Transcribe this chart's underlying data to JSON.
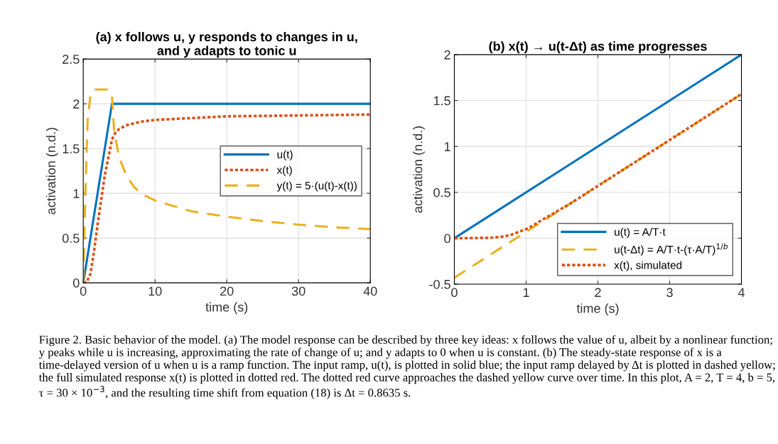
{
  "chart_data": [
    {
      "type": "line",
      "title": "(a) x follows u, y responds to changes in u,\nand y adapts to tonic u",
      "xlabel": "time (s)",
      "ylabel": "activation (n.d.)",
      "xlim": [
        0,
        40
      ],
      "ylim": [
        0,
        2.5
      ],
      "xticks": [
        0,
        10,
        20,
        30,
        40
      ],
      "yticks": [
        0,
        0.5,
        1,
        1.5,
        2,
        2.5
      ],
      "grid": true,
      "legend": "right",
      "series": [
        {
          "name": "u(t)",
          "color": "#0072bd",
          "line_style": "solid",
          "x": [
            0,
            4,
            40
          ],
          "values": [
            0,
            2,
            2
          ]
        },
        {
          "name": "x(t)",
          "color": "#d95319",
          "line_style": "dotted",
          "x": [
            0,
            0.5,
            1,
            1.5,
            2,
            3,
            4,
            4.5,
            5,
            6,
            8,
            10,
            15,
            20,
            30,
            40
          ],
          "values": [
            0,
            0.01,
            0.1,
            0.35,
            0.65,
            1.2,
            1.6,
            1.68,
            1.72,
            1.76,
            1.8,
            1.82,
            1.84,
            1.86,
            1.87,
            1.88
          ]
        },
        {
          "name": "y(t) = 5·(u(t)-x(t))",
          "color": "#edb120",
          "line_style": "dashed",
          "x": [
            0,
            0.3,
            0.6,
            1,
            1.5,
            3.5,
            4,
            4.3,
            5,
            6,
            7,
            8,
            10,
            15,
            20,
            25,
            30,
            35,
            40
          ],
          "values": [
            0,
            1.0,
            1.8,
            2.1,
            2.16,
            2.16,
            2.1,
            1.7,
            1.4,
            1.2,
            1.08,
            1.0,
            0.92,
            0.8,
            0.74,
            0.69,
            0.65,
            0.62,
            0.6
          ]
        }
      ],
      "annotations": [
        "Figure 2. Basic behavior of the model. (a) The model response can be described by three key ideas: x follows the value of u, albeit by a nonlinear function; y peaks while u is increasing, approximating the rate of change of u; and y adapts to 0 when u is constant. (b) The steady-state response of x is a time-delayed version of u when u is a ramp function. The input ramp, u(t), is plotted in solid blue; the input ramp delayed by Δt is plotted in dashed yellow; the full simulated response x(t) is plotted in dotted red. The dotted red curve approaches the dashed yellow curve over time. In this plot, A = 2, T = 4, b = 5, τ = 30 × 10$^{−3}$, and the resulting time shift from equation (18) is Δt = 0.8635 s."
      ]
    },
    {
      "type": "line",
      "title": "(b) x(t) → u(t-Δt) as time progresses",
      "xlabel": "time (s)",
      "ylabel": "activation (n.d.)",
      "xlim": [
        0,
        4
      ],
      "ylim": [
        -0.5,
        2
      ],
      "xticks": [
        0,
        1,
        2,
        3,
        4
      ],
      "yticks": [
        -0.5,
        0,
        0.5,
        1,
        1.5,
        2
      ],
      "grid": true,
      "legend": "lower right",
      "series": [
        {
          "name": "u(t) = A/T·t",
          "color": "#0072bd",
          "line_style": "solid",
          "x": [
            0,
            4
          ],
          "values": [
            0,
            2
          ]
        },
        {
          "name": "u(t-Δt) = A/T·t-(τ·A/T)$^{1/b}$",
          "color": "#edb120",
          "line_style": "dashed",
          "x": [
            0,
            4
          ],
          "values": [
            -0.43,
            1.57
          ]
        },
        {
          "name": "x(t), simulated",
          "color": "#d95319",
          "line_style": "dotted",
          "x": [
            0,
            0.5,
            0.7,
            0.8,
            0.9,
            1.0,
            1.1,
            1.2,
            1.4,
            1.6,
            2,
            3,
            4
          ],
          "values": [
            0,
            0.005,
            0.02,
            0.04,
            0.07,
            0.1,
            0.14,
            0.19,
            0.28,
            0.37,
            0.57,
            1.07,
            1.57
          ]
        }
      ]
    }
  ]
}
